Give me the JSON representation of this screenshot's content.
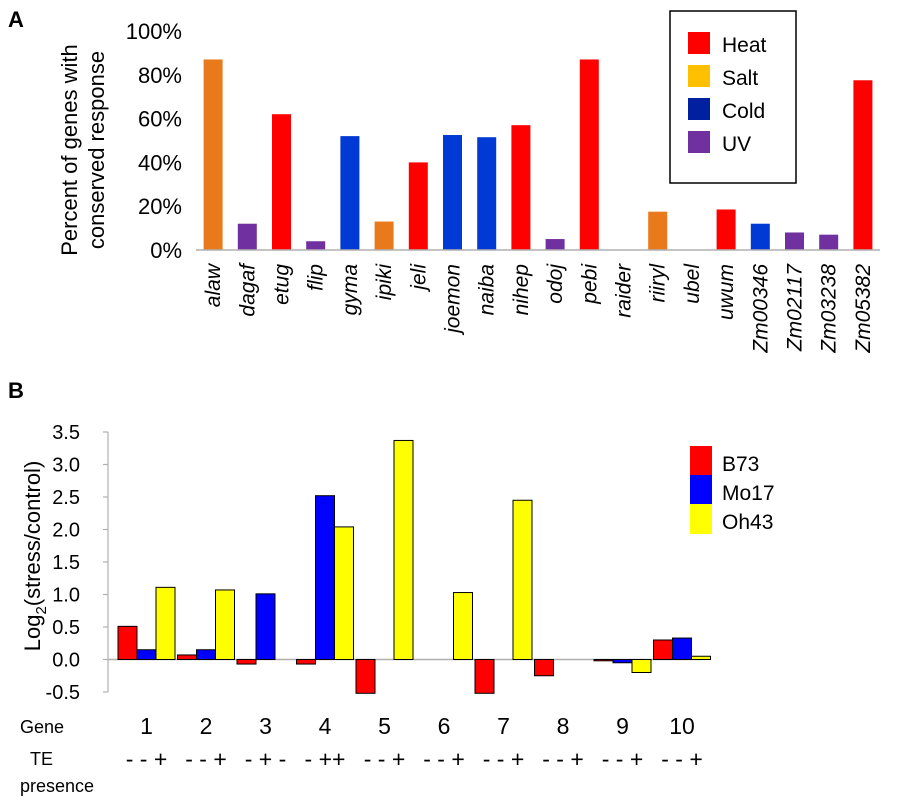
{
  "chart_data": [
    {
      "panel_label": "A",
      "type": "bar",
      "ylabel_lines": [
        "Percent of genes with",
        "conserved response"
      ],
      "ylim": [
        0,
        100
      ],
      "yticks": [
        0,
        20,
        40,
        60,
        80,
        100
      ],
      "ytick_labels": [
        "0%",
        "20%",
        "40%",
        "60%",
        "80%",
        "100%"
      ],
      "categories": [
        "alaw",
        "dagaf",
        "etug",
        "flip",
        "gyma",
        "ipiki",
        "jeli",
        "joemon",
        "naiba",
        "nihep",
        "odoj",
        "pebi",
        "raider",
        "riiryl",
        "ubel",
        "uwum",
        "Zm00346",
        "Zm02117",
        "Zm03238",
        "Zm05382"
      ],
      "values": [
        87,
        12,
        62,
        4,
        52,
        13,
        40,
        52.5,
        51.5,
        57,
        5,
        87,
        0,
        17.5,
        0,
        18.5,
        12,
        8,
        7,
        77.5
      ],
      "stress": [
        "Salt",
        "UV",
        "Heat",
        "UV",
        "Cold",
        "Salt",
        "Heat",
        "Cold",
        "Cold",
        "Heat",
        "UV",
        "Heat",
        "Heat",
        "Salt",
        "Heat",
        "Heat",
        "Cold",
        "UV",
        "UV",
        "Heat"
      ],
      "legend": [
        {
          "name": "Heat",
          "color": "#ff0000"
        },
        {
          "name": "Salt",
          "color": "#ffc000"
        },
        {
          "name": "Cold",
          "color": "#00209f"
        },
        {
          "name": "UV",
          "color": "#7030a0"
        }
      ],
      "bar_colors": {
        "Heat": "#ff0000",
        "Salt": "#e87a1c",
        "Cold": "#0039d3",
        "UV": "#7030a0"
      },
      "legend_position": "top-right"
    },
    {
      "panel_label": "B",
      "type": "bar",
      "ylabel": "Log",
      "ylabel_sub": "2",
      "ylabel_rest": "(stress/control)",
      "ylim": [
        -0.5,
        3.5
      ],
      "yticks": [
        -0.5,
        0,
        0.5,
        1,
        1.5,
        2,
        2.5,
        3,
        3.5
      ],
      "ytick_labels": [
        "-0.5",
        "0.0",
        "0.5",
        "1.0",
        "1.5",
        "2.0",
        "2.5",
        "3.0",
        "3.5"
      ],
      "row_label_gene": "Gene",
      "row_label_te_lines": [
        "TE",
        "presence"
      ],
      "categories": [
        "1",
        "2",
        "3",
        "4",
        "5",
        "6",
        "7",
        "8",
        "9",
        "10"
      ],
      "te_presence": [
        "- - +",
        "- - +",
        "- + -",
        "- ++",
        "- - +",
        "- - +",
        "- - +",
        "- - +",
        "- - +",
        "- - +"
      ],
      "series": [
        {
          "name": "B73",
          "color": "#ff0000",
          "values": [
            0.51,
            0.07,
            -0.07,
            -0.07,
            -0.52,
            0.0,
            -0.52,
            -0.25,
            -0.02,
            0.3
          ]
        },
        {
          "name": "Mo17",
          "color": "#0000ff",
          "values": [
            0.15,
            0.15,
            1.01,
            2.52,
            0.0,
            0.0,
            0.0,
            0.0,
            -0.05,
            0.33
          ]
        },
        {
          "name": "Oh43",
          "color": "#ffff00",
          "values": [
            1.11,
            1.07,
            0.0,
            2.04,
            3.37,
            1.03,
            2.45,
            0.0,
            -0.2,
            0.05
          ]
        }
      ],
      "legend_position": "top-right"
    }
  ]
}
